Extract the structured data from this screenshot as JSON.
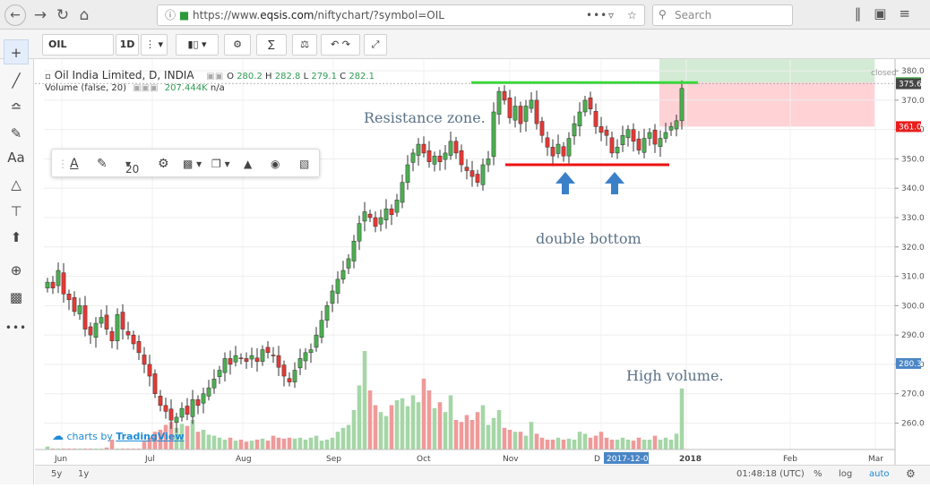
{
  "browser": {
    "url_prefix": "https://www.",
    "url_host": "eqsis.com",
    "url_rest": "/niftychart/?symbol=OIL",
    "search_placeholder": "Search",
    "more_icon": "•••"
  },
  "toolbar": {
    "symbol": "OIL",
    "interval": "1D"
  },
  "legend": {
    "title": "Oil India Limited, D, INDIA",
    "o_label": "O",
    "o_value": "280.2",
    "h_label": "H",
    "h_value": "282.8",
    "l_label": "L",
    "l_value": "279.1",
    "c_label": "C",
    "c_value": "282.1",
    "volume_label": "Volume (false, 20)",
    "volume_value": "207.444K",
    "volume_na": "n/a",
    "market_status": "closed"
  },
  "floating_toolbar": {
    "font_size": "20"
  },
  "annotations": {
    "resistance": "Resistance zone.",
    "double_bottom": "double bottom",
    "high_volume": "High volume."
  },
  "branding": {
    "prefix": "charts by ",
    "name": "TradingView"
  },
  "bottom": {
    "range_5y": "5y",
    "range_1y": "1y",
    "clock": "01:48:18 (UTC)",
    "pct": "%",
    "log": "log",
    "auto": "auto"
  },
  "chart_data": {
    "type": "candlestick",
    "symbol": "OIL",
    "x_ticks": [
      "Jun",
      "Jul",
      "Aug",
      "Sep",
      "Oct",
      "Nov",
      "D",
      "2018",
      "Feb",
      "Mar"
    ],
    "crosshair_date": "2017-12-08",
    "y_ticks": [
      260.0,
      270.0,
      280.0,
      290.0,
      300.0,
      310.0,
      320.0,
      330.0,
      340.0,
      350.0,
      360.0,
      370.0,
      380.0
    ],
    "ylim": [
      251,
      384
    ],
    "price_labels": [
      {
        "value": 376.0,
        "text": "376.0",
        "color": "#4caf50"
      },
      {
        "value": 375.6,
        "text": "375.6",
        "color": "#444444"
      },
      {
        "value": 361.0,
        "text": "361.0",
        "color": "#e91e1e"
      },
      {
        "value": 280.3,
        "text": "280.3",
        "color": "#4a86c5"
      }
    ],
    "resistance_level": 376.0,
    "support_level": 348.0,
    "colors": {
      "up": "#4caf50",
      "down": "#e53935",
      "vol_up": "#a5d6a7",
      "vol_down": "#ef9a9a",
      "resistance": "#33dd33",
      "support": "#ee1111",
      "arrow": "#3a80c8"
    },
    "closes": [
      308,
      306,
      312,
      304,
      302,
      298,
      300,
      292,
      290,
      294,
      296,
      292,
      288,
      297,
      292,
      290,
      287,
      284,
      280,
      276,
      270,
      266,
      264,
      261,
      262,
      265,
      263,
      268,
      266,
      270,
      272,
      275,
      278,
      282,
      280,
      283,
      282,
      281,
      283,
      281,
      285,
      284,
      283,
      279,
      276,
      274,
      278,
      282,
      284,
      285,
      290,
      295,
      300,
      305,
      309,
      312,
      316,
      322,
      328,
      332,
      330,
      327,
      330,
      333,
      331,
      336,
      342,
      348,
      352,
      355,
      352,
      349,
      351,
      349,
      352,
      356,
      352,
      348,
      346,
      344,
      342,
      348,
      350,
      366,
      373,
      370,
      364,
      368,
      362,
      368,
      370,
      362,
      358,
      354,
      351,
      355,
      351,
      357,
      362,
      366,
      370,
      367,
      361,
      359,
      358,
      352,
      354,
      358,
      360,
      356,
      353,
      357,
      359,
      355,
      357,
      359,
      361,
      363,
      374
    ],
    "volumes": [
      3,
      1,
      1,
      1,
      1,
      1,
      1,
      1,
      1,
      1,
      1,
      2,
      10,
      1,
      1,
      1,
      1,
      1,
      8,
      12,
      18,
      20,
      25,
      28,
      22,
      26,
      24,
      30,
      18,
      20,
      15,
      14,
      12,
      10,
      12,
      9,
      10,
      8,
      9,
      10,
      11,
      9,
      14,
      12,
      11,
      12,
      11,
      12,
      10,
      12,
      14,
      9,
      10,
      12,
      18,
      22,
      25,
      40,
      65,
      100,
      60,
      45,
      38,
      34,
      45,
      50,
      52,
      44,
      55,
      48,
      72,
      60,
      42,
      48,
      38,
      55,
      30,
      28,
      35,
      30,
      38,
      45,
      25,
      32,
      40,
      22,
      20,
      18,
      18,
      14,
      28,
      16,
      12,
      10,
      10,
      12,
      10,
      11,
      10,
      18,
      16,
      12,
      14,
      18,
      12,
      10,
      10,
      12,
      10,
      9,
      12,
      10,
      10,
      14,
      10,
      12,
      10,
      16,
      62
    ]
  }
}
